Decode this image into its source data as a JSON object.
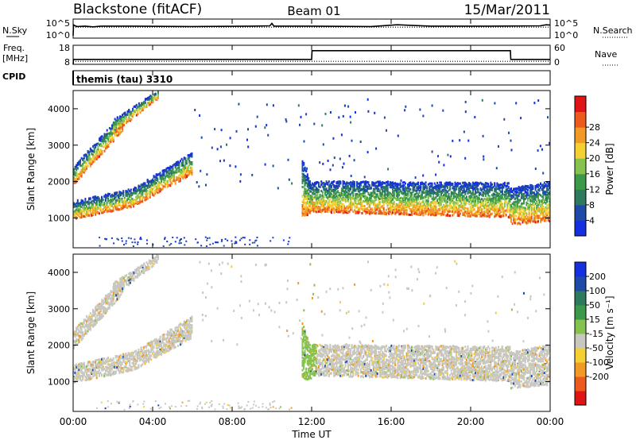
{
  "header": {
    "station": "Blackstone (fitACF)",
    "beam": "Beam 01",
    "date": "15/Mar/2011"
  },
  "top_panels": {
    "nsky_label": "N.Sky",
    "nsearch_label": "N.Search",
    "noise_ticks": [
      "10^5",
      "10^0"
    ],
    "freq_label": "Freq.",
    "freq_unit": "[MHz]",
    "freq_ticks": [
      "18",
      "8"
    ],
    "nave_label": "Nave",
    "nave_ticks": [
      "60",
      "0"
    ],
    "cpid_label": "CPID",
    "cpid_value": "themis (tau) 3310"
  },
  "colors": {
    "power": [
      "#1530e0",
      "#1f4aa8",
      "#2e7a5e",
      "#3a9a4a",
      "#86c34e",
      "#f5d033",
      "#f29a26",
      "#ec5a1e",
      "#e01414"
    ],
    "velocity": [
      "#1530e0",
      "#1f4aa8",
      "#2e7a5e",
      "#3a9a4a",
      "#86c34e",
      "#c8c8c0",
      "#f5d033",
      "#f29a26",
      "#ec5a1e",
      "#e01414"
    ]
  },
  "chart_data": [
    {
      "type": "line",
      "name": "noise-panel",
      "x_range": [
        0,
        24
      ],
      "series": [
        {
          "name": "N.Sky",
          "style": "solid",
          "x": [
            0,
            0.02,
            0.05,
            0.2,
            0.6,
            1.0,
            1.4,
            3,
            6,
            9,
            9.9,
            10,
            10.1,
            12,
            15,
            16.3,
            18,
            21,
            23.5,
            23.8,
            24
          ],
          "y": [
            0.5,
            3.6,
            3.4,
            3.1,
            3.2,
            3.0,
            3.2,
            3.2,
            3.1,
            3.2,
            3.3,
            4.0,
            3.2,
            3.2,
            3.1,
            3.6,
            3.2,
            3.2,
            3.3,
            3.6,
            3.5
          ]
        },
        {
          "name": "N.Search",
          "style": "dotted",
          "x": [
            0,
            24
          ],
          "y": [
            2.9,
            2.9
          ]
        }
      ],
      "ylim_log10": [
        0,
        5
      ]
    },
    {
      "type": "line",
      "name": "frequency-panel",
      "x_range": [
        0,
        24
      ],
      "series": [
        {
          "name": "Freq",
          "style": "solid",
          "x": [
            0,
            0.02,
            12,
            12.02,
            22,
            22.02,
            24
          ],
          "y": [
            7.6,
            10.6,
            10.6,
            16.1,
            16.1,
            10.6,
            10.6
          ]
        },
        {
          "name": "Nave",
          "style": "dotted",
          "x": [
            0,
            24
          ],
          "y": [
            9.4,
            9.4
          ]
        }
      ],
      "ylim": [
        8,
        18
      ]
    },
    {
      "type": "heatmap",
      "name": "power-panel",
      "xlabel": "",
      "ylabel": "Slant Range [km]",
      "xlim": [
        0,
        24
      ],
      "ylim": [
        180,
        4500
      ],
      "yticks": [
        1000,
        2000,
        3000,
        4000
      ],
      "colorbar": {
        "label": "Power [dB]",
        "range": [
          0,
          32
        ],
        "ticks": [
          4,
          8,
          12,
          16,
          20,
          24,
          28
        ]
      },
      "bands": [
        {
          "t0": 0.0,
          "t1": 3.0,
          "lo0": 950,
          "lo1": 1300,
          "hi0": 1450,
          "hi1": 1800
        },
        {
          "t0": 3.0,
          "t1": 6.0,
          "lo0": 1300,
          "lo1": 2200,
          "hi0": 1800,
          "hi1": 2800
        },
        {
          "t0": 0.0,
          "t1": 2.5,
          "lo0": 1900,
          "lo1": 3400,
          "hi0": 2400,
          "hi1": 3900
        },
        {
          "t0": 2.0,
          "t1": 4.3,
          "lo0": 3300,
          "lo1": 4300,
          "hi0": 3700,
          "hi1": 4500
        },
        {
          "t0": 11.5,
          "t1": 12.0,
          "lo0": 1050,
          "lo1": 1050,
          "hi0": 2600,
          "hi1": 1800
        },
        {
          "t0": 12.0,
          "t1": 22.0,
          "lo0": 1150,
          "lo1": 1000,
          "hi0": 2000,
          "hi1": 1950
        },
        {
          "t0": 22.0,
          "t1": 24.0,
          "lo0": 800,
          "lo1": 900,
          "hi0": 1800,
          "hi1": 2000
        }
      ]
    },
    {
      "type": "heatmap",
      "name": "velocity-panel",
      "xlabel": "Time UT",
      "ylabel": "Slant Range [km]",
      "xlim": [
        0,
        24
      ],
      "ylim": [
        180,
        4500
      ],
      "yticks": [
        1000,
        2000,
        3000,
        4000
      ],
      "xticks": [
        "00:00",
        "04:00",
        "08:00",
        "12:00",
        "16:00",
        "20:00",
        "00:00"
      ],
      "colorbar": {
        "label": "Velocity [m s⁻¹]",
        "range": [
          -250,
          250
        ],
        "ticks": [
          "200",
          "100",
          "50",
          "15",
          "-15",
          "-50",
          "-100",
          "-200"
        ]
      },
      "bands": [
        {
          "t0": 0.0,
          "t1": 3.0,
          "lo0": 950,
          "lo1": 1300,
          "hi0": 1450,
          "hi1": 1800
        },
        {
          "t0": 3.0,
          "t1": 6.0,
          "lo0": 1300,
          "lo1": 2200,
          "hi0": 1800,
          "hi1": 2800
        },
        {
          "t0": 0.0,
          "t1": 2.5,
          "lo0": 1900,
          "lo1": 3400,
          "hi0": 2400,
          "hi1": 3900
        },
        {
          "t0": 2.0,
          "t1": 4.3,
          "lo0": 3300,
          "lo1": 4300,
          "hi0": 3700,
          "hi1": 4500
        },
        {
          "t0": 11.5,
          "t1": 12.0,
          "lo0": 1050,
          "lo1": 1050,
          "hi0": 2600,
          "hi1": 1800
        },
        {
          "t0": 12.0,
          "t1": 22.0,
          "lo0": 1150,
          "lo1": 1000,
          "hi0": 2000,
          "hi1": 1950
        },
        {
          "t0": 22.0,
          "t1": 24.0,
          "lo0": 800,
          "lo1": 900,
          "hi0": 1800,
          "hi1": 2000
        }
      ]
    }
  ]
}
